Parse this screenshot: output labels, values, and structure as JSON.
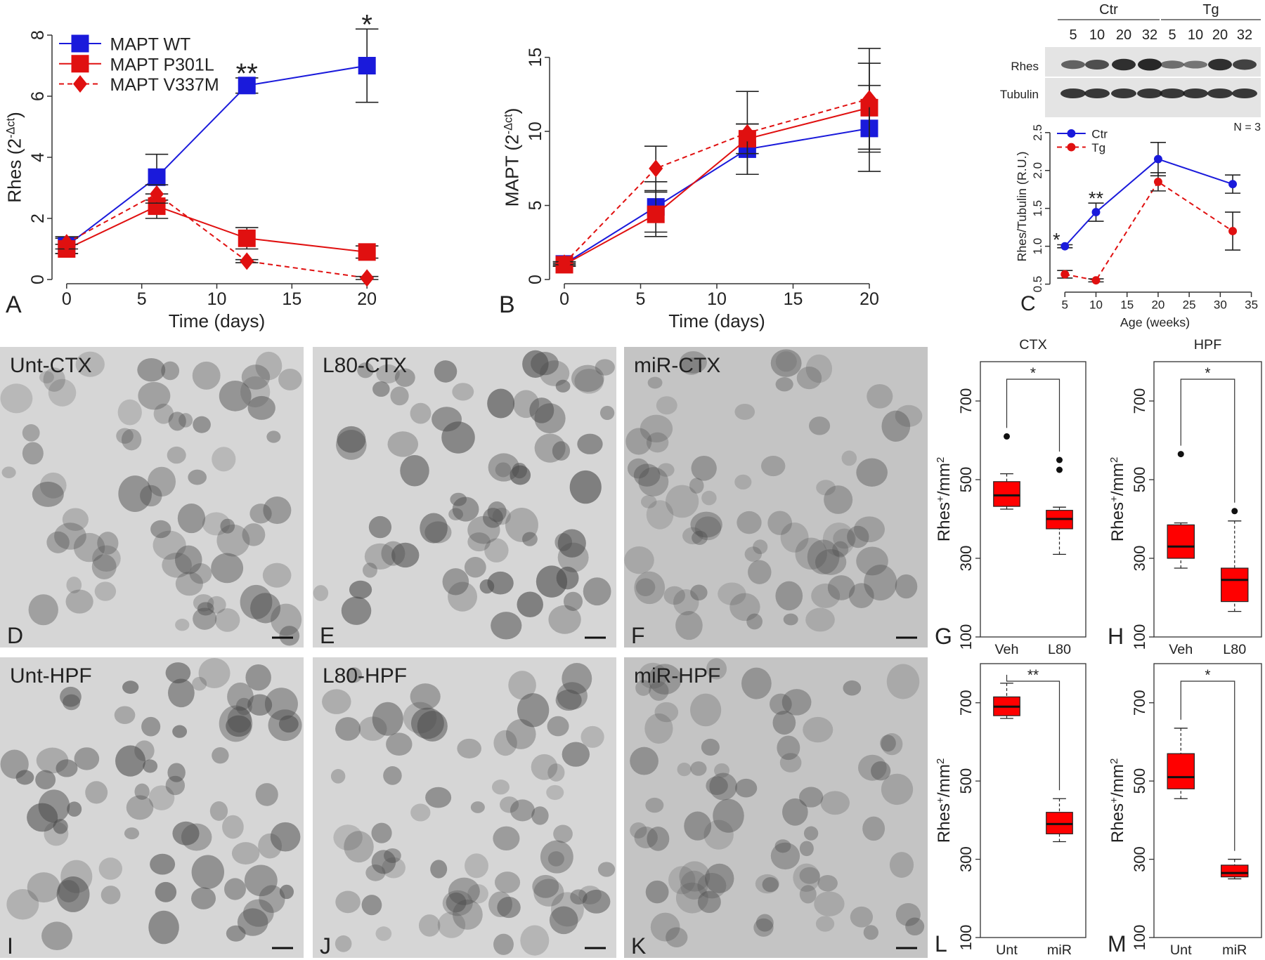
{
  "chart_data": [
    {
      "type": "line",
      "panel": "A",
      "x_label": "Time (days)",
      "y_label": [
        "Rhes (2",
        "-Δct",
        ")"
      ],
      "x": [
        0,
        6,
        12,
        20
      ],
      "xlim": [
        -0.6,
        20.6
      ],
      "xticks": [
        0,
        5,
        10,
        15,
        20
      ],
      "ylim": [
        0,
        8
      ],
      "yticks": [
        0,
        2,
        4,
        6,
        8
      ],
      "legend": "top-left",
      "series": [
        {
          "name": "MAPT WT",
          "color": "#1a1adb",
          "marker": "square",
          "dashed": false,
          "values": [
            1.1,
            3.35,
            6.35,
            7.0
          ],
          "errors": [
            0.25,
            0.75,
            0.25,
            1.2
          ]
        },
        {
          "name": "MAPT P301L",
          "color": "#e01010",
          "marker": "square",
          "dashed": false,
          "values": [
            1.0,
            2.4,
            1.35,
            0.9
          ],
          "errors": [
            0.15,
            0.4,
            0.35,
            0.2
          ]
        },
        {
          "name": "MAPT V337M",
          "color": "#e01010",
          "marker": "diamond",
          "dashed": true,
          "values": [
            1.2,
            2.8,
            0.6,
            0.05
          ],
          "errors": [
            0.2,
            0.3,
            0.05,
            0.05
          ]
        }
      ],
      "annotations": [
        {
          "text": "**",
          "x": 12
        },
        {
          "text": "*",
          "x": 20
        }
      ]
    },
    {
      "type": "line",
      "panel": "B",
      "x_label": "Time (days)",
      "y_label": [
        "MAPT (2",
        "-Δct",
        ")"
      ],
      "x": [
        0,
        6,
        12,
        20
      ],
      "xlim": [
        -0.6,
        20.6
      ],
      "xticks": [
        0,
        5,
        10,
        15,
        20
      ],
      "ylim": [
        0,
        16.5
      ],
      "yticks": [
        0,
        5,
        10,
        15
      ],
      "series": [
        {
          "color": "#1a1adb",
          "marker": "square",
          "dashed": false,
          "values": [
            1.05,
            4.9,
            8.8,
            10.2
          ],
          "errors": [
            0.15,
            1.7,
            1.7,
            2.9
          ]
        },
        {
          "color": "#e01010",
          "marker": "square",
          "dashed": false,
          "values": [
            1.0,
            4.4,
            9.5,
            11.6
          ],
          "errors": [
            0.1,
            1.5,
            1.0,
            3.0
          ]
        },
        {
          "color": "#e01010",
          "marker": "diamond",
          "dashed": true,
          "values": [
            1.1,
            7.5,
            9.9,
            12.2
          ],
          "errors": [
            0.1,
            1.5,
            2.8,
            3.4
          ]
        }
      ]
    },
    {
      "type": "line",
      "panel": "C",
      "x_label": "Age (weeks)",
      "y_label": [
        "Rhes/Tubulin (R.U.)"
      ],
      "x": [
        5,
        10,
        20,
        32
      ],
      "xlim": [
        3.5,
        35.5
      ],
      "xticks": [
        5,
        10,
        15,
        20,
        25,
        30,
        35
      ],
      "ylim": [
        0.45,
        2.6
      ],
      "yticks": [
        {
          "value": 0.5,
          "label": "0.5"
        },
        {
          "value": 1.0,
          "label": "1.0"
        },
        {
          "value": 1.5,
          "label": "1.5"
        },
        {
          "value": 2.0,
          "label": "2.0"
        },
        {
          "value": 2.5,
          "label": "2.5"
        }
      ],
      "legend": "top-left",
      "series": [
        {
          "name": "Ctr",
          "color": "#1a1adb",
          "marker": "circle",
          "dashed": false,
          "values": [
            1.0,
            1.45,
            2.15,
            1.82
          ],
          "errors": [
            0.02,
            0.12,
            0.22,
            0.12
          ]
        },
        {
          "name": "Tg",
          "color": "#e01010",
          "marker": "circle",
          "dashed": true,
          "values": [
            0.63,
            0.55,
            1.85,
            1.2
          ],
          "errors": [
            0.05,
            0.02,
            0.12,
            0.25
          ]
        }
      ],
      "annotations": [
        {
          "text": "*",
          "x": 5
        },
        {
          "text": "**",
          "x": 10
        }
      ]
    },
    {
      "type": "box",
      "panel": "G",
      "title": "CTX",
      "categories": [
        "Veh",
        "L80"
      ],
      "color": "#ff0000",
      "y_label": [
        "Rhes",
        "+",
        "/mm",
        "2"
      ],
      "ylim": [
        100,
        800
      ],
      "yticks": [
        100,
        300,
        500,
        700
      ],
      "significance": "*",
      "boxes": [
        {
          "min": 425,
          "q1": 432,
          "median": 460,
          "q3": 495,
          "max": 515,
          "outliers": [
            610
          ]
        },
        {
          "min": 310,
          "q1": 375,
          "median": 400,
          "q3": 422,
          "max": 430,
          "outliers": [
            525,
            550
          ]
        }
      ]
    },
    {
      "type": "box",
      "panel": "H",
      "title": "HPF",
      "categories": [
        "Veh",
        "L80"
      ],
      "color": "#ff0000",
      "y_label": [
        "Rhes",
        "+",
        "/mm",
        "2"
      ],
      "ylim": [
        100,
        800
      ],
      "yticks": [
        100,
        300,
        500,
        700
      ],
      "significance": "*",
      "boxes": [
        {
          "min": 275,
          "q1": 300,
          "median": 330,
          "q3": 385,
          "max": 390,
          "outliers": [
            565
          ]
        },
        {
          "min": 165,
          "q1": 190,
          "median": 245,
          "q3": 275,
          "max": 395,
          "outliers": [
            420
          ]
        }
      ]
    },
    {
      "type": "box",
      "panel": "L",
      "categories": [
        "Unt",
        "miR"
      ],
      "color": "#ff0000",
      "y_label": [
        "Rhes",
        "+",
        "/mm",
        "2"
      ],
      "ylim": [
        100,
        800
      ],
      "yticks": [
        100,
        300,
        500,
        700
      ],
      "significance": "**",
      "boxes": [
        {
          "min": 660,
          "q1": 667,
          "median": 690,
          "q3": 715,
          "max": 750,
          "outliers": []
        },
        {
          "min": 345,
          "q1": 365,
          "median": 390,
          "q3": 420,
          "max": 455,
          "outliers": []
        }
      ]
    },
    {
      "type": "box",
      "panel": "M",
      "categories": [
        "Unt",
        "miR"
      ],
      "color": "#ff0000",
      "y_label": [
        "Rhes",
        "+",
        "/mm",
        "2"
      ],
      "ylim": [
        100,
        800
      ],
      "yticks": [
        100,
        300,
        500,
        700
      ],
      "significance": "*",
      "boxes": [
        {
          "min": 455,
          "q1": 480,
          "median": 510,
          "q3": 570,
          "max": 635,
          "outliers": []
        },
        {
          "min": 250,
          "q1": 255,
          "median": 265,
          "q3": 285,
          "max": 300,
          "outliers": []
        }
      ]
    }
  ],
  "blot": {
    "groups": [
      "Ctr",
      "Tg"
    ],
    "lanes": [
      "5",
      "10",
      "20",
      "32",
      "5",
      "10",
      "20",
      "32"
    ],
    "rows": [
      "Rhes",
      "Tubulin"
    ],
    "note": "N = 3"
  },
  "images": [
    {
      "label": "Unt-CTX",
      "panel": "D"
    },
    {
      "label": "L80-CTX",
      "panel": "E"
    },
    {
      "label": "miR-CTX",
      "panel": "F"
    },
    {
      "label": "Unt-HPF",
      "panel": "I"
    },
    {
      "label": "L80-HPF",
      "panel": "J"
    },
    {
      "label": "miR-HPF",
      "panel": "K"
    }
  ]
}
